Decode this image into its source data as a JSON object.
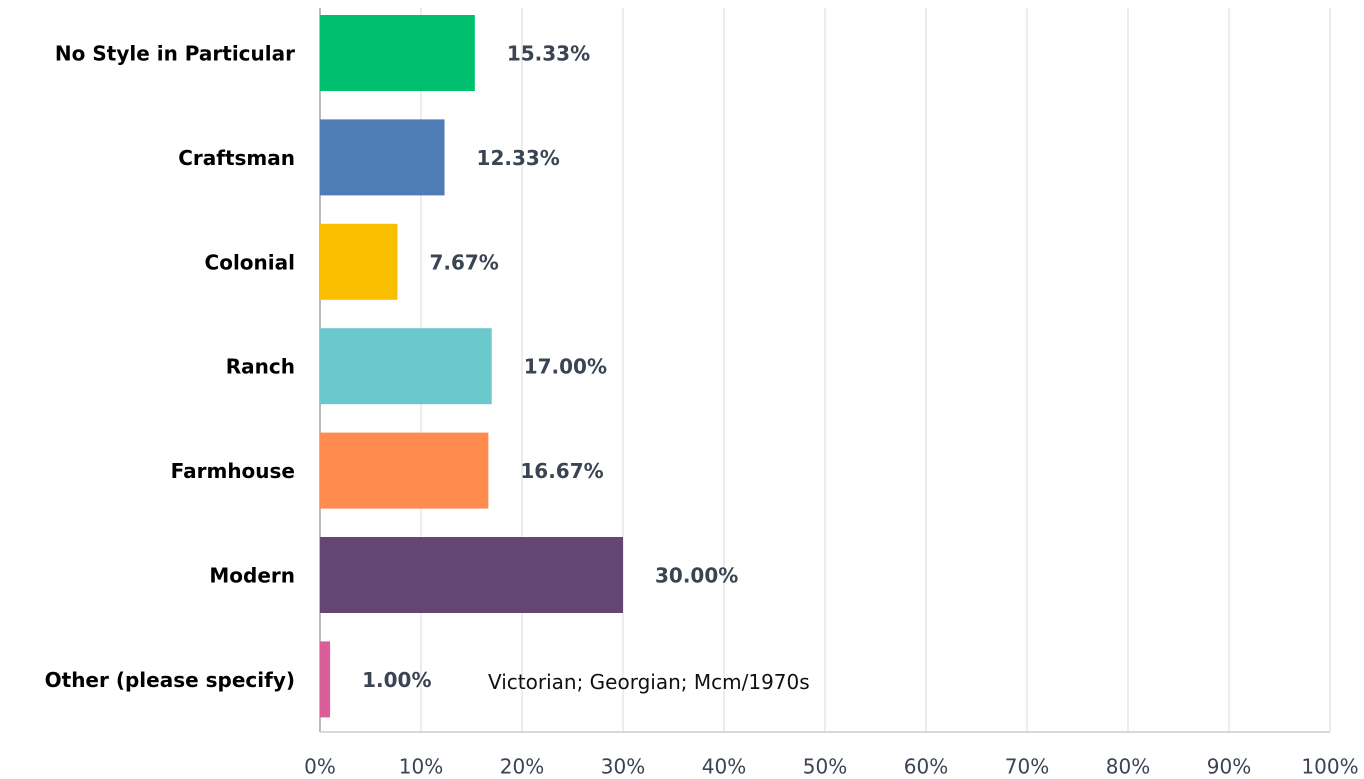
{
  "chart_data": {
    "type": "bar",
    "orientation": "horizontal",
    "categories": [
      "No Style in Particular",
      "Craftsman",
      "Colonial",
      "Ranch",
      "Farmhouse",
      "Modern",
      "Other (please specify)"
    ],
    "values": [
      15.33,
      12.33,
      7.67,
      17,
      16.67,
      30,
      1
    ],
    "value_labels": [
      "15.33%",
      "12.33%",
      "7.67%",
      "17.00%",
      "16.67%",
      "30.00%",
      "1.00%"
    ],
    "colors": [
      "#00bf6f",
      "#507cb6",
      "#f9be00",
      "#6bc8cd",
      "#ff8b4f",
      "#644674",
      "#d95d97"
    ],
    "annotations": [
      "Victorian; Georgian; Mcm/1970s"
    ],
    "xlim": [
      0,
      100
    ],
    "xticks": [
      {
        "value": 0,
        "label": "0%"
      },
      {
        "value": 10,
        "label": "10%"
      },
      {
        "value": 20,
        "label": "20%"
      },
      {
        "value": 30,
        "label": "30%"
      },
      {
        "value": 40,
        "label": "40%"
      },
      {
        "value": 50,
        "label": "50%"
      },
      {
        "value": 60,
        "label": "60%"
      },
      {
        "value": 70,
        "label": "70%"
      },
      {
        "value": 80,
        "label": "80%"
      },
      {
        "value": 90,
        "label": "90%"
      },
      {
        "value": 100,
        "label": "100%"
      }
    ],
    "grid": true
  }
}
